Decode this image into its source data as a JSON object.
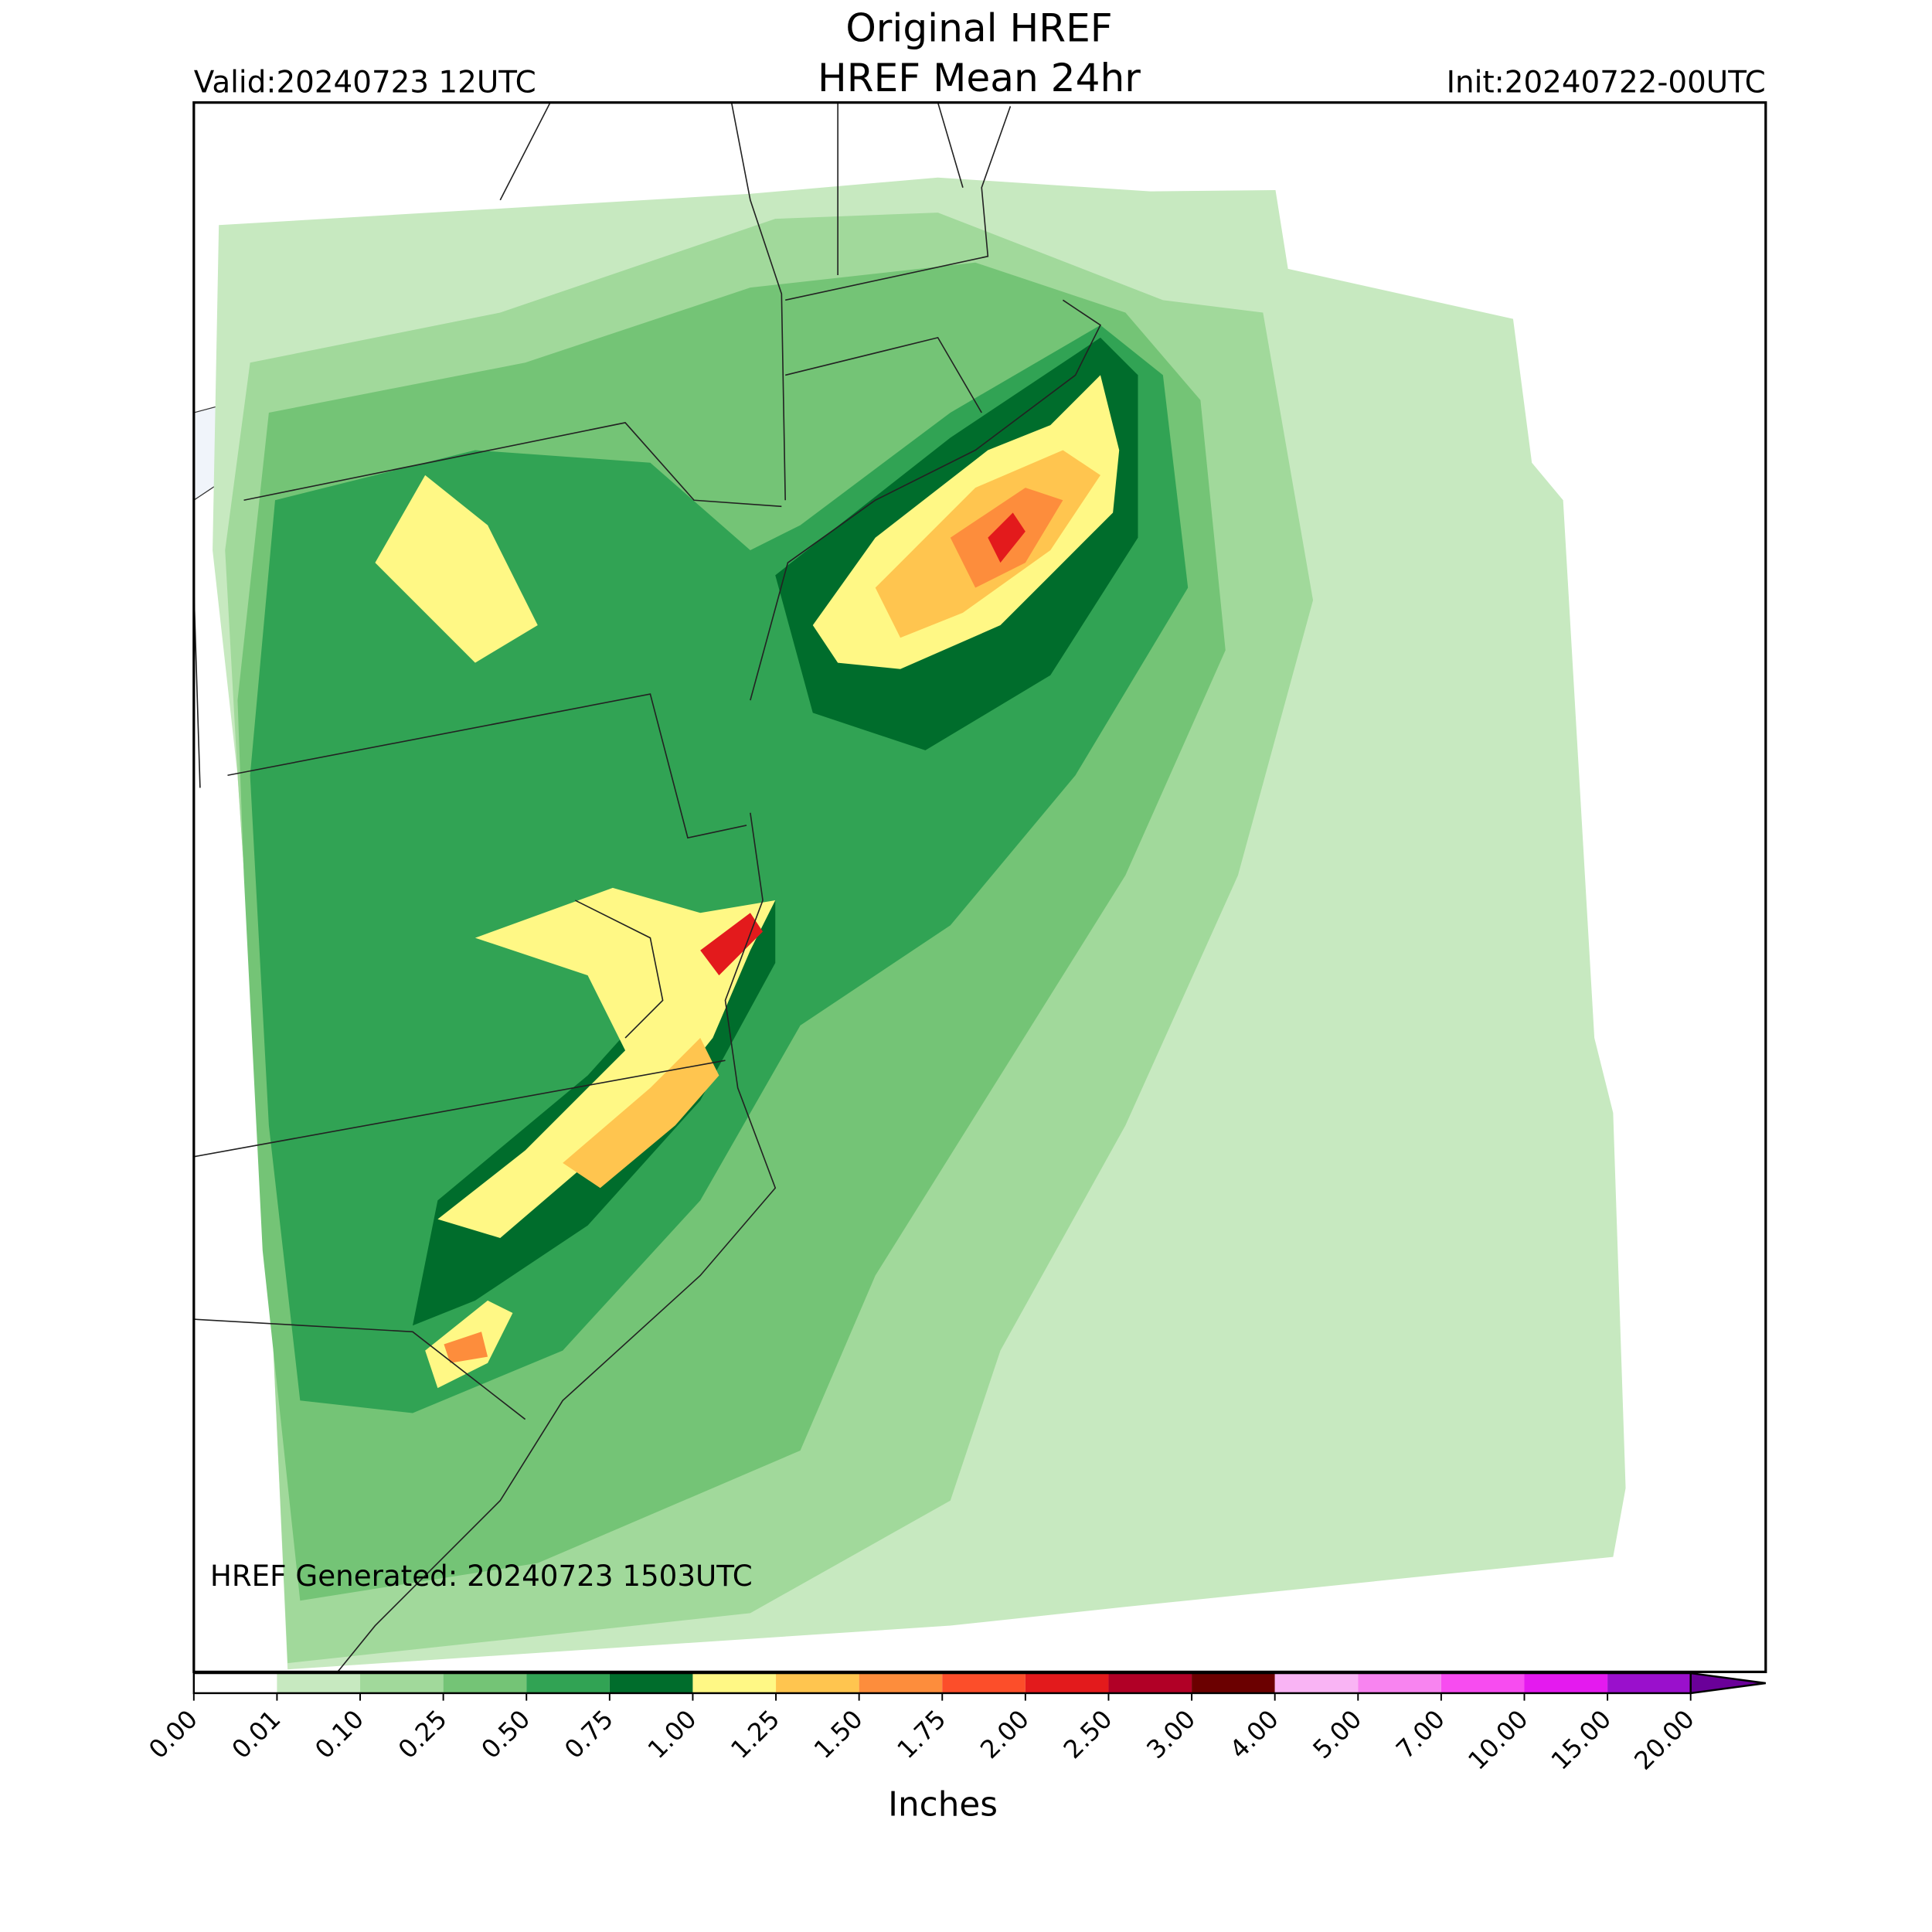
{
  "header": {
    "title": "Original HREF",
    "subtitle": "HREF Mean 24hr",
    "valid": "Valid:20240723 12UTC",
    "init": "Init:20240722-00UTC"
  },
  "annotation": "HREF Generated: 20240723 1503UTC",
  "colorbar": {
    "label": "Inches",
    "ticks": [
      {
        "value": 0,
        "label": "0.00"
      },
      {
        "value": 0.01,
        "label": "0.01"
      },
      {
        "value": 0.1,
        "label": "0.10"
      },
      {
        "value": 0.25,
        "label": "0.25"
      },
      {
        "value": 0.5,
        "label": "0.50"
      },
      {
        "value": 0.75,
        "label": "0.75"
      },
      {
        "value": 1,
        "label": "1.00"
      },
      {
        "value": 1.25,
        "label": "1.25"
      },
      {
        "value": 1.5,
        "label": "1.50"
      },
      {
        "value": 1.75,
        "label": "1.75"
      },
      {
        "value": 2,
        "label": "2.00"
      },
      {
        "value": 2.5,
        "label": "2.50"
      },
      {
        "value": 3,
        "label": "3.00"
      },
      {
        "value": 4,
        "label": "4.00"
      },
      {
        "value": 5,
        "label": "5.00"
      },
      {
        "value": 7,
        "label": "7.00"
      },
      {
        "value": 10,
        "label": "10.00"
      },
      {
        "value": 15,
        "label": "15.00"
      },
      {
        "value": 20,
        "label": "20.00"
      }
    ],
    "colors": [
      "#ffffff",
      "#c7e9c0",
      "#a1d99b",
      "#74c476",
      "#31a354",
      "#006d2c",
      "#fff885",
      "#ffc54f",
      "#fd8d3c",
      "#fc4e2a",
      "#e31a1c",
      "#b10026",
      "#6b0000",
      "#f9b4f4",
      "#f884f0",
      "#f74cf0",
      "#e41aef",
      "#9a10cc"
    ],
    "extend_color": "#6a0099"
  }
}
